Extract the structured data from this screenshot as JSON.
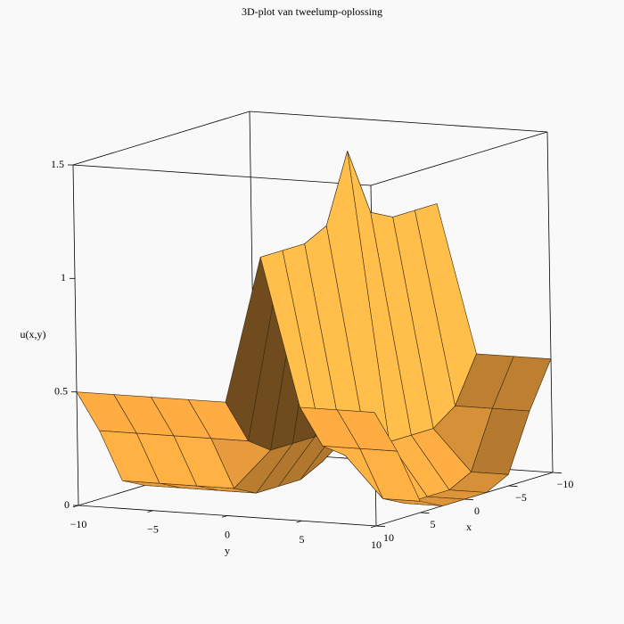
{
  "chart_data": {
    "type": "surface3d",
    "title": "3D-plot van tweelump-oplossing",
    "x_label": "x",
    "y_label": "y",
    "z_label": "u(x,y)",
    "color": "#f7a640",
    "x": [
      -10,
      -7.5,
      -5,
      -2.5,
      0,
      2.5,
      5,
      7.5,
      10
    ],
    "y": [
      -10,
      -7.5,
      -5,
      -2.5,
      0,
      2.5,
      5,
      7.5,
      10
    ],
    "z": [
      [
        0.5,
        0.3,
        0.05,
        0,
        0,
        0,
        0.05,
        0.3,
        0.5
      ],
      [
        0.5,
        0.3,
        0.05,
        0,
        0,
        0,
        0.05,
        0.3,
        0.5
      ],
      [
        0.5,
        0.3,
        0.05,
        0,
        0,
        0,
        0.05,
        0.3,
        0.5
      ],
      [
        0.5,
        0.3,
        0.05,
        0,
        0,
        0,
        0.05,
        0.3,
        0.5
      ],
      [
        0.5,
        0.3,
        0.23,
        0.23,
        0.23,
        0.23,
        0.23,
        0.3,
        0.5
      ],
      [
        1.15,
        1.15,
        1.15,
        1.2,
        1.5,
        1.2,
        1.15,
        1.15,
        1.15
      ],
      [
        0.5,
        0.3,
        0.23,
        0.23,
        0.23,
        0.23,
        0.23,
        0.3,
        0.5
      ],
      [
        0.5,
        0.3,
        0.05,
        0,
        0,
        0,
        0.05,
        0.3,
        0.5
      ],
      [
        0.5,
        0.3,
        0.05,
        0,
        0,
        0,
        0.05,
        0.3,
        0.5
      ]
    ],
    "xlim": [
      -10,
      10
    ],
    "ylim": [
      -10,
      10
    ],
    "zlim": [
      0,
      1.5
    ],
    "xticks": [
      {
        "value": -10,
        "label": "−10"
      },
      {
        "value": -5,
        "label": "−5"
      },
      0,
      5,
      10
    ],
    "yticks": [
      {
        "value": -10,
        "label": "−10"
      },
      {
        "value": -5,
        "label": "−5"
      },
      0,
      5,
      10
    ],
    "zticks": [
      0,
      0.5,
      1,
      1.5
    ]
  }
}
